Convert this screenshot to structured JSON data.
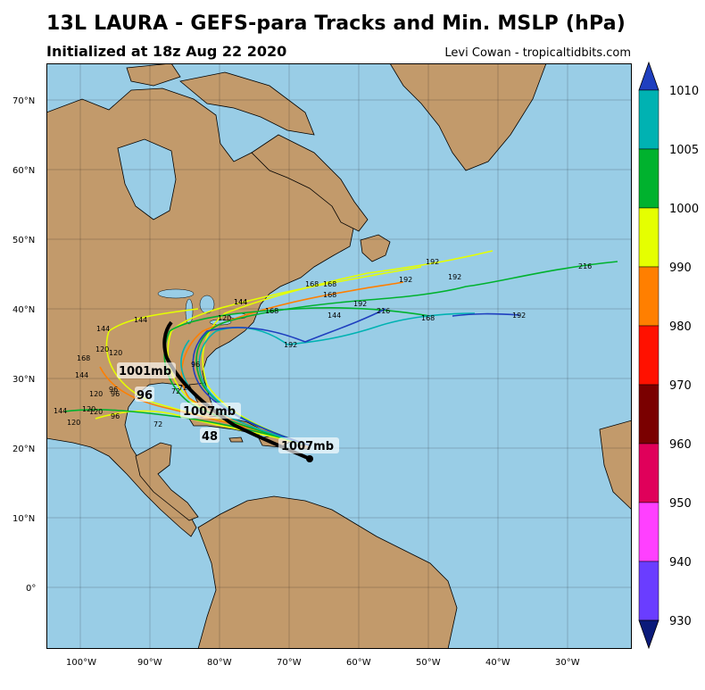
{
  "header": {
    "title": "13L LAURA - GEFS-para Tracks and Min. MSLP (hPa)",
    "subtitle": "Initialized at 18z Aug 22 2020",
    "credit": "Levi Cowan - tropicaltidbits.com"
  },
  "colors": {
    "ocean": "#99cde6",
    "land": "#c29a6b",
    "mean_track": "#000000"
  },
  "axes": {
    "lon_ticks": [
      "100°W",
      "90°W",
      "80°W",
      "70°W",
      "60°W",
      "50°W",
      "40°W",
      "30°W"
    ],
    "lat_ticks": [
      "70°N",
      "60°N",
      "50°N",
      "40°N",
      "30°N",
      "20°N",
      "10°N",
      "0°"
    ]
  },
  "colorbar": {
    "labels": [
      "1010",
      "1005",
      "1000",
      "990",
      "980",
      "970",
      "960",
      "950",
      "940",
      "930"
    ],
    "colors": [
      "#1f3fbf",
      "#00b2b2",
      "#00b22e",
      "#e5ff00",
      "#ff7f00",
      "#ff1100",
      "#7a0000",
      "#e0005a",
      "#ff40ff",
      "#6a3dff",
      "#0b1a7a"
    ]
  },
  "annotations": {
    "pressure_labels": [
      "1001mb",
      "1007mb",
      "1007mb"
    ],
    "hour_labels_big": [
      "96",
      "48"
    ],
    "hour_labels": [
      "168",
      "192",
      "216",
      "144",
      "120",
      "96",
      "72",
      "168",
      "192",
      "192",
      "168",
      "192",
      "216",
      "168",
      "192",
      "144",
      "144",
      "120",
      "168",
      "192",
      "144",
      "144",
      "120",
      "168",
      "144",
      "120",
      "96",
      "120",
      "144",
      "120",
      "96",
      "72",
      "96",
      "72",
      "120"
    ]
  }
}
